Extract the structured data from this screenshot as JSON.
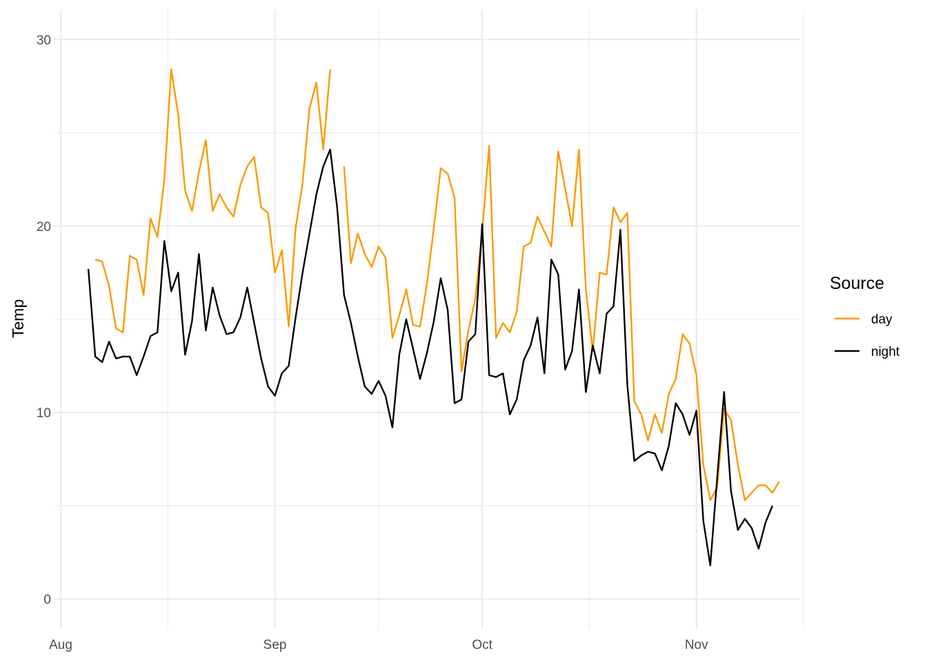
{
  "chart_data": {
    "type": "line",
    "title": "",
    "xlabel": "",
    "ylabel": "Temp",
    "x_ticks": [
      "Aug",
      "Sep",
      "Oct",
      "Nov"
    ],
    "x_tick_dates": [
      "2021-08-01",
      "2021-09-01",
      "2021-10-01",
      "2021-11-01"
    ],
    "y_ticks": [
      0,
      10,
      20,
      30
    ],
    "xlim": [
      "2021-07-31",
      "2021-11-16"
    ],
    "ylim": [
      -1.6,
      31.6
    ],
    "grid": true,
    "legend": {
      "title": "Source",
      "position": "right"
    },
    "x_dates_start": "2021-08-05",
    "series": [
      {
        "name": "day",
        "color": "#ff9800",
        "values": [
          null,
          18.2,
          18.1,
          16.8,
          14.5,
          14.3,
          18.4,
          18.2,
          16.3,
          20.4,
          19.4,
          22.5,
          28.4,
          26.0,
          21.9,
          20.8,
          22.9,
          24.6,
          20.8,
          21.7,
          21.0,
          20.5,
          22.2,
          23.2,
          23.7,
          21.0,
          20.7,
          17.5,
          18.7,
          14.6,
          19.9,
          22.3,
          26.3,
          27.7,
          24.1,
          28.4,
          null,
          23.2,
          18.0,
          19.6,
          18.5,
          17.8,
          18.9,
          18.3,
          14.0,
          15.2,
          16.6,
          14.7,
          14.6,
          16.9,
          19.9,
          23.1,
          22.8,
          21.5,
          12.2,
          14.4,
          16.1,
          19.7,
          24.3,
          14.0,
          14.8,
          14.3,
          15.4,
          18.9,
          19.1,
          20.5,
          19.7,
          18.9,
          24.0,
          22.0,
          20.0,
          24.1,
          16.6,
          13.3,
          17.5,
          17.4,
          21.0,
          20.2,
          20.7,
          10.6,
          9.9,
          8.5,
          9.9,
          8.9,
          11.0,
          11.8,
          14.2,
          13.7,
          12.0,
          7.2,
          5.3,
          6.0,
          10.2,
          9.6,
          7.2,
          5.3,
          5.7,
          6.1,
          6.1,
          5.7,
          6.3
        ]
      },
      {
        "name": "night",
        "color": "#000000",
        "values": [
          17.7,
          13.0,
          12.7,
          13.8,
          12.9,
          13.0,
          13.0,
          12.0,
          13.0,
          14.1,
          14.3,
          19.2,
          16.5,
          17.5,
          13.1,
          14.9,
          18.5,
          14.4,
          16.7,
          15.2,
          14.2,
          14.3,
          15.1,
          16.7,
          14.8,
          12.9,
          11.4,
          10.9,
          12.1,
          12.5,
          15.1,
          17.5,
          19.6,
          21.7,
          23.2,
          24.1,
          21.0,
          16.3,
          14.8,
          13.0,
          11.4,
          11.0,
          11.7,
          10.9,
          9.2,
          13.1,
          15.0,
          13.4,
          11.8,
          13.2,
          14.9,
          17.2,
          15.5,
          10.5,
          10.7,
          13.8,
          14.2,
          20.1,
          12.0,
          11.9,
          12.1,
          9.9,
          10.7,
          12.8,
          13.6,
          15.1,
          12.1,
          18.2,
          17.4,
          12.3,
          13.3,
          16.6,
          11.1,
          13.6,
          12.1,
          15.3,
          15.7,
          19.8,
          11.5,
          7.4,
          7.7,
          7.9,
          7.8,
          6.9,
          8.2,
          10.5,
          9.9,
          8.8,
          10.1,
          4.2,
          1.8,
          6.5,
          11.1,
          5.8,
          3.7,
          4.3,
          3.8,
          2.7,
          4.1,
          5.0
        ]
      }
    ]
  }
}
